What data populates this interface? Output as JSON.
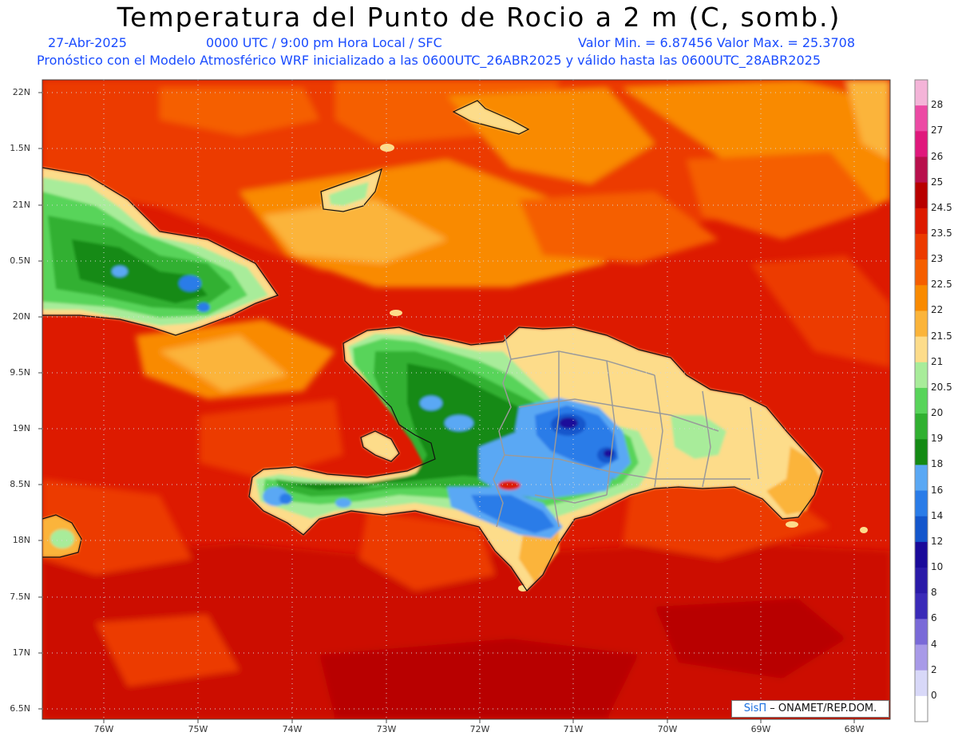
{
  "header": {
    "title": "Temperatura del Punto de Rocio a 2 m (C, somb.)",
    "date": "27-Abr-2025",
    "time": "0000 UTC / 9:00 pm Hora Local / SFC",
    "min_max": "Valor Min. = 6.87456  Valor Max. = 25.3708",
    "model_info": "Pronóstico con el Modelo Atmosférico WRF inicializado a las 0600UTC_26ABR2025 y válido hasta las  0600UTC_28ABR2025"
  },
  "axes": {
    "lat_labels": [
      "22N",
      "1.5N",
      "21N",
      "0.5N",
      "20N",
      "9.5N",
      "19N",
      "8.5N",
      "18N",
      "7.5N",
      "17N",
      "6.5N"
    ],
    "lon_labels": [
      "76W",
      "75W",
      "74W",
      "73W",
      "72W",
      "71W",
      "70W",
      "69W",
      "68W"
    ]
  },
  "colorbar": {
    "labels": [
      "28",
      "27",
      "26",
      "25",
      "24.5",
      "23.5",
      "23",
      "22.5",
      "22",
      "21.5",
      "21",
      "20.5",
      "20",
      "19",
      "18",
      "16",
      "14",
      "12",
      "10",
      "8",
      "6",
      "4",
      "2",
      "0"
    ],
    "colors": [
      "#f4b4d8",
      "#ec4aa4",
      "#e0187c",
      "#b8104c",
      "#b80000",
      "#dd1a00",
      "#ec3a00",
      "#f55e00",
      "#f98a00",
      "#fbb43a",
      "#fddc8a",
      "#a8ec9a",
      "#58d45a",
      "#30b030",
      "#148a14",
      "#5aa8f4",
      "#2a7ce8",
      "#1456cc",
      "#1a0a9a",
      "#2a1aa8",
      "#3a2ab8",
      "#7a6ad8",
      "#a89ae8",
      "#d8d8f8",
      "#ffffff"
    ]
  },
  "credit": {
    "brand": "SisΠ",
    "text": " – ONAMET/REP.DOM."
  }
}
